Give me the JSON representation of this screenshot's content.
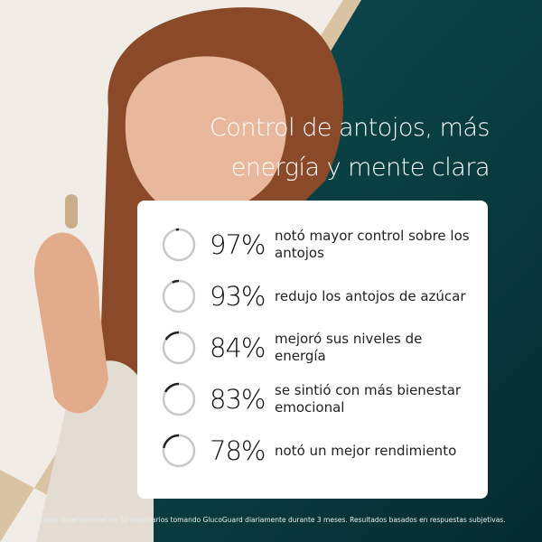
{
  "headline": {
    "line1": "Control de antojos, más",
    "line2": "energía y mente clara"
  },
  "stats": [
    {
      "percent": 97,
      "label": "97%",
      "text": "notó mayor control sobre los antojos"
    },
    {
      "percent": 93,
      "label": "93%",
      "text": "redujo los antojos de azúcar"
    },
    {
      "percent": 84,
      "label": "84%",
      "text": "mejoró sus niveles de energía"
    },
    {
      "percent": 83,
      "label": "83%",
      "text": "se sintió con más bienestar emocional"
    },
    {
      "percent": 78,
      "label": "78%",
      "text": "notó un mejor rendimiento"
    }
  ],
  "footnote": "Estudio observacional en 32 voluntarios tomando GlucoGuard diariamente durante 3 meses. Resultados basados en respuestas subjetivas.",
  "colors": {
    "teal": "#0b4448",
    "cream": "#f1ede6",
    "beige": "#d9c3a2",
    "ring_gray": "#c8c8c8",
    "ring_dark": "#222222"
  }
}
